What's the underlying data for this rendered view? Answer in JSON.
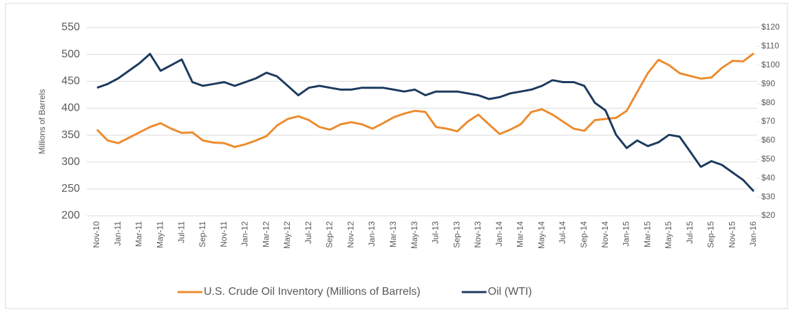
{
  "chart_data": {
    "type": "line",
    "categories": [
      "Nov-10",
      null,
      "Jan-11",
      null,
      "Mar-11",
      null,
      "May-11",
      null,
      "Jul-11",
      null,
      "Sep-11",
      null,
      "Nov-11",
      null,
      "Jan-12",
      null,
      "Mar-12",
      null,
      "May-12",
      null,
      "Jul-12",
      null,
      "Sep-12",
      null,
      "Nov-12",
      null,
      "Jan-13",
      null,
      "Mar-13",
      null,
      "May-13",
      null,
      "Jul-13",
      null,
      "Sep-13",
      null,
      "Nov-13",
      null,
      "Jan-14",
      null,
      "Mar-14",
      null,
      "May-14",
      null,
      "Jul-14",
      null,
      "Sep-14",
      null,
      "Nov-14",
      null,
      "Jan-15",
      null,
      "Mar-15",
      null,
      "May-15",
      null,
      "Jul-15",
      null,
      "Sep-15",
      null,
      "Nov-15",
      null,
      "Jan-16"
    ],
    "y_label": "Millions of Barrels",
    "ylim": [
      200,
      550
    ],
    "yticks": [
      200,
      250,
      300,
      350,
      400,
      450,
      500,
      550
    ],
    "y2lim": [
      20,
      120
    ],
    "y2ticks": [
      {
        "value": 20,
        "label": "$20"
      },
      {
        "value": 30,
        "label": "$30"
      },
      {
        "value": 40,
        "label": "$40"
      },
      {
        "value": 50,
        "label": "$50"
      },
      {
        "value": 60,
        "label": "$60"
      },
      {
        "value": 70,
        "label": "$70"
      },
      {
        "value": 80,
        "label": "$80"
      },
      {
        "value": 90,
        "label": "$90"
      },
      {
        "value": 100,
        "label": "$100"
      },
      {
        "value": 110,
        "label": "$110"
      },
      {
        "value": 120,
        "label": "$120"
      }
    ],
    "grid": true,
    "legend": "bottom",
    "series": [
      {
        "name": "U.S. Crude Oil Inventory (Millions of Barrels)",
        "color": "#ed8b2d",
        "values": [
          360,
          340,
          335,
          345,
          355,
          365,
          372,
          362,
          354,
          355,
          340,
          336,
          335,
          328,
          333,
          340,
          348,
          368,
          380,
          385,
          378,
          365,
          360,
          370,
          374,
          370,
          362,
          372,
          383,
          390,
          395,
          393,
          365,
          362,
          357,
          375,
          388,
          370,
          352,
          360,
          370,
          393,
          398,
          388,
          375,
          362,
          358,
          378,
          380,
          382,
          395,
          430,
          465,
          490,
          480,
          465,
          460,
          455,
          457,
          475,
          488,
          487,
          502
        ]
      },
      {
        "name": "Oil (WTI)",
        "color": "#1c3a5e",
        "axis": "y2",
        "values": [
          88,
          90,
          93,
          97,
          101,
          106,
          97,
          100,
          103,
          91,
          89,
          90,
          91,
          89,
          91,
          93,
          96,
          94,
          89,
          84,
          88,
          89,
          88,
          87,
          87,
          88,
          88,
          88,
          87,
          86,
          87,
          84,
          86,
          86,
          86,
          85,
          84,
          82,
          83,
          85,
          86,
          87,
          89,
          92,
          91,
          91,
          89,
          80,
          76,
          63,
          56,
          60,
          57,
          59,
          63,
          62,
          54,
          46,
          49,
          47,
          43,
          39,
          33
        ]
      }
    ]
  }
}
